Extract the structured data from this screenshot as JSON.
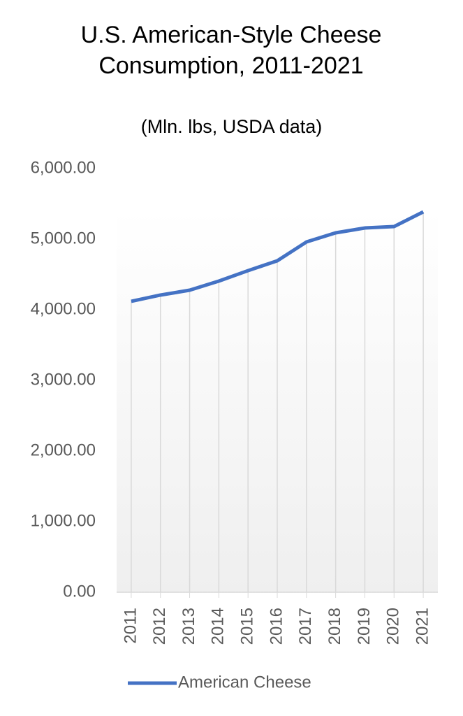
{
  "chart_data": {
    "type": "line",
    "title": "U.S. American-Style Cheese Consumption, 2011-2021",
    "subtitle": "(Mln. lbs, USDA data)",
    "categories": [
      "2011",
      "2012",
      "2013",
      "2014",
      "2015",
      "2016",
      "2017",
      "2018",
      "2019",
      "2020",
      "2021"
    ],
    "series": [
      {
        "name": "American Cheese",
        "color": "#4472c4",
        "values": [
          4119,
          4208,
          4277,
          4406,
          4554,
          4693,
          4960,
          5089,
          5158,
          5178,
          5386
        ]
      }
    ],
    "ylim": [
      0,
      6000
    ],
    "yticks": [
      {
        "value": 0,
        "label": "0.00"
      },
      {
        "value": 1000,
        "label": "1,000.00"
      },
      {
        "value": 2000,
        "label": "2,000.00"
      },
      {
        "value": 3000,
        "label": "3,000.00"
      },
      {
        "value": 4000,
        "label": "4,000.00"
      },
      {
        "value": 5000,
        "label": "5,000.00"
      },
      {
        "value": 6000,
        "label": "6,000.00"
      }
    ],
    "legend": "bottom"
  }
}
